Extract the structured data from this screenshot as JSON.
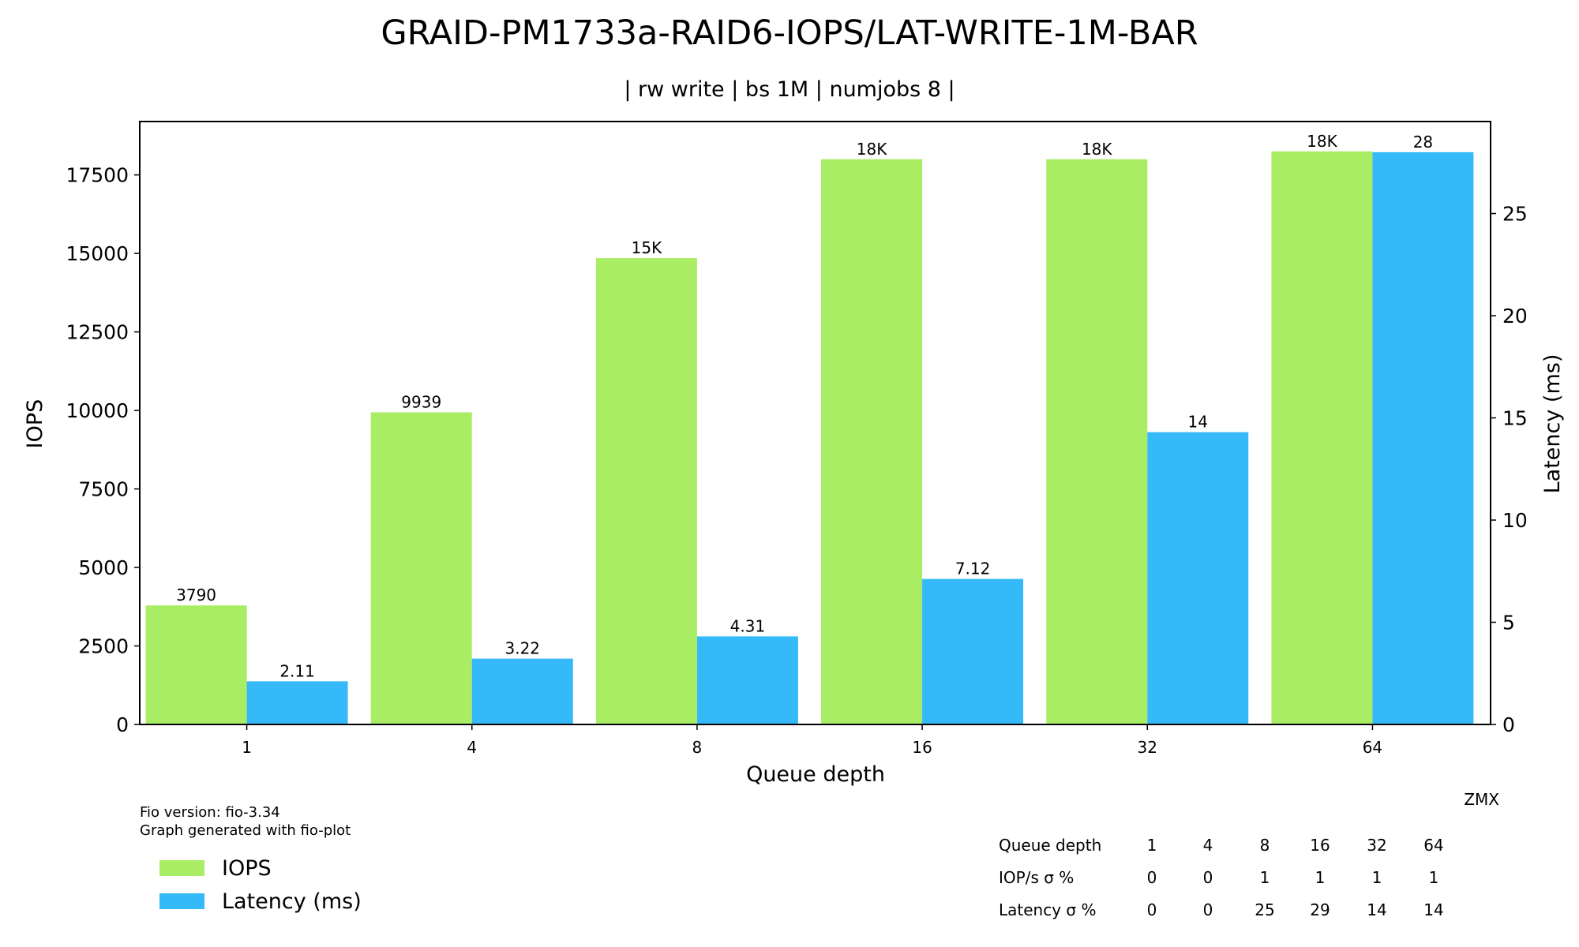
{
  "chart_data": {
    "type": "bar",
    "title": "GRAID-PM1733a-RAID6-IOPS/LAT-WRITE-1M-BAR",
    "subtitle": "| rw write | bs 1M | numjobs 8 |",
    "xlabel": "Queue depth",
    "ylabel": "IOPS",
    "y2label": "Latency (ms)",
    "categories": [
      "1",
      "4",
      "8",
      "16",
      "32",
      "64"
    ],
    "ylim": [
      0,
      19200
    ],
    "y2lim": [
      0,
      29.5
    ],
    "yticks": [
      0,
      2500,
      5000,
      7500,
      10000,
      12500,
      15000,
      17500
    ],
    "y2ticks": [
      0,
      5,
      10,
      15,
      20,
      25
    ],
    "grid": false,
    "series": [
      {
        "name": "IOPS",
        "axis": "left",
        "color": "#a9ed64",
        "values": [
          3790,
          9939,
          14850,
          18000,
          18000,
          18250
        ],
        "labels": [
          "3790",
          "9939",
          "15K",
          "18K",
          "18K",
          "18K"
        ]
      },
      {
        "name": "Latency (ms)",
        "axis": "right",
        "color": "#35b9f8",
        "values": [
          2.11,
          3.22,
          4.31,
          7.12,
          14.3,
          28.0
        ],
        "labels": [
          "2.11",
          "3.22",
          "4.31",
          "7.12",
          "14",
          "28"
        ]
      }
    ],
    "legend_position": "bottom-left",
    "footer": {
      "fio_version": "Fio version: fio-3.34",
      "generator": "Graph generated with fio-plot",
      "author": "ZMX"
    },
    "stats_table": {
      "rows": [
        {
          "label": "Queue depth",
          "values": [
            "1",
            "4",
            "8",
            "16",
            "32",
            "64"
          ]
        },
        {
          "label": "IOP/s σ %",
          "values": [
            "0",
            "0",
            "1",
            "1",
            "1",
            "1"
          ]
        },
        {
          "label": "Latency σ %",
          "values": [
            "0",
            "0",
            "25",
            "29",
            "14",
            "14"
          ]
        }
      ]
    }
  }
}
